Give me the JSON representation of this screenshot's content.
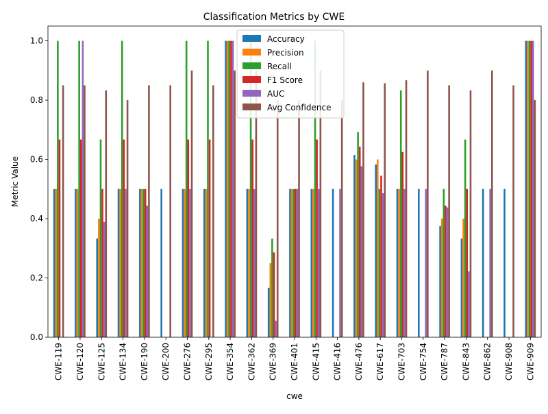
{
  "chart_data": {
    "type": "bar",
    "title": "Classification Metrics by CWE",
    "xlabel": "cwe",
    "ylabel": "Metric Value",
    "ylim": [
      0,
      1.05
    ],
    "yticks": [
      "0.0",
      "0.2",
      "0.4",
      "0.6",
      "0.8",
      "1.0"
    ],
    "legend_position": "top-center",
    "categories": [
      "CWE-119",
      "CWE-120",
      "CWE-125",
      "CWE-134",
      "CWE-190",
      "CWE-200",
      "CWE-276",
      "CWE-295",
      "CWE-354",
      "CWE-362",
      "CWE-369",
      "CWE-401",
      "CWE-415",
      "CWE-416",
      "CWE-476",
      "CWE-617",
      "CWE-703",
      "CWE-754",
      "CWE-787",
      "CWE-843",
      "CWE-862",
      "CWE-908",
      "CWE-909"
    ],
    "series": [
      {
        "name": "Accuracy",
        "color": "#1f77b4",
        "values": [
          0.5,
          0.5,
          0.333,
          0.5,
          0.5,
          0.5,
          0.5,
          0.5,
          1.0,
          0.5,
          0.167,
          0.5,
          0.5,
          0.5,
          0.615,
          0.583,
          0.5,
          0.5,
          0.375,
          0.333,
          0.5,
          0.5,
          1.0
        ]
      },
      {
        "name": "Precision",
        "color": "#ff7f0e",
        "values": [
          0.5,
          0.5,
          0.4,
          0.5,
          0.5,
          0.0,
          0.5,
          0.5,
          1.0,
          0.5,
          0.25,
          0.5,
          0.5,
          0.0,
          0.6,
          0.6,
          0.5,
          0.0,
          0.4,
          0.4,
          0.0,
          0.0,
          1.0
        ]
      },
      {
        "name": "Recall",
        "color": "#2ca02c",
        "values": [
          1.0,
          1.0,
          0.667,
          1.0,
          0.5,
          0.0,
          1.0,
          1.0,
          1.0,
          1.0,
          0.333,
          0.5,
          1.0,
          0.0,
          0.692,
          0.5,
          0.833,
          0.0,
          0.5,
          0.667,
          0.0,
          0.0,
          1.0
        ]
      },
      {
        "name": "F1 Score",
        "color": "#d62728",
        "values": [
          0.667,
          0.667,
          0.5,
          0.667,
          0.5,
          0.0,
          0.667,
          0.667,
          1.0,
          0.667,
          0.286,
          0.5,
          0.667,
          0.0,
          0.643,
          0.545,
          0.625,
          0.0,
          0.444,
          0.5,
          0.0,
          0.0,
          1.0
        ]
      },
      {
        "name": "AUC",
        "color": "#9467bd",
        "values": [
          0.0,
          1.0,
          0.389,
          0.5,
          0.444,
          0.0,
          0.5,
          0.0,
          1.0,
          0.5,
          0.056,
          0.5,
          0.5,
          0.5,
          0.577,
          0.486,
          0.5,
          0.5,
          0.438,
          0.222,
          0.5,
          0.0,
          1.0
        ]
      },
      {
        "name": "Avg Confidence",
        "color": "#8c564b",
        "values": [
          0.85,
          0.85,
          0.833,
          0.8,
          0.85,
          0.85,
          0.9,
          0.85,
          0.9,
          0.9,
          0.8,
          0.8,
          0.9,
          0.8,
          0.86,
          0.857,
          0.867,
          0.9,
          0.85,
          0.833,
          0.9,
          0.85,
          0.8
        ]
      }
    ]
  }
}
